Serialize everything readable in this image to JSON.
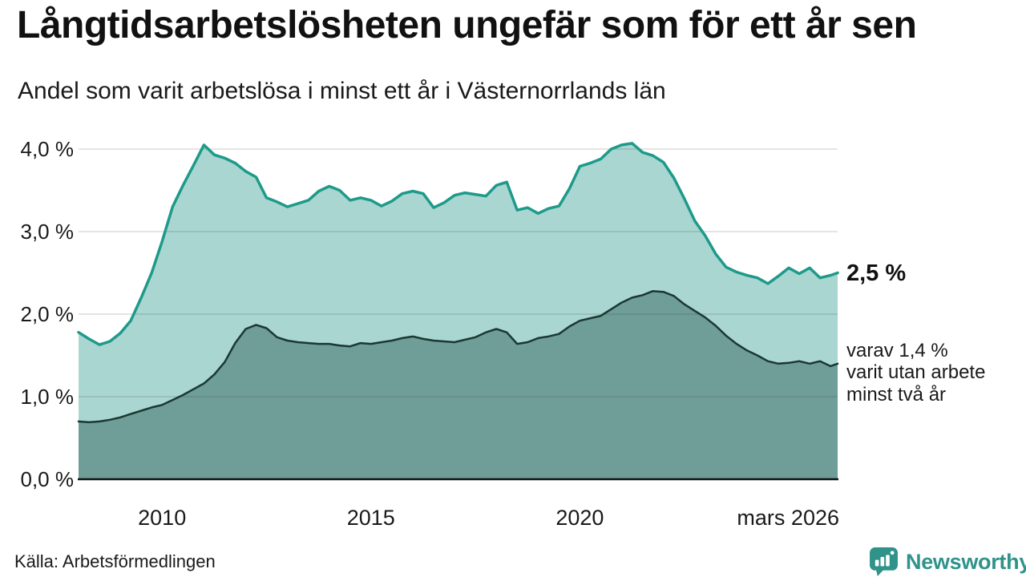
{
  "header": {
    "title": "Långtidsarbetslösheten ungefär som för ett år sen",
    "subtitle": "Andel som varit arbetslösa i minst ett år i Västernorrlands län"
  },
  "footer": {
    "source": "Källa: Arbetsförmedlingen",
    "brand": "Newsworthy"
  },
  "colors": {
    "brand_teal": "#2f938a",
    "series1_line": "#1e9a8a",
    "series1_fill": "#a9d6d0",
    "series2_line": "#1b3833",
    "series2_fill": "#6f9d98",
    "axis_line": "#101010",
    "gridline": "#d9d9d9",
    "text": "#1a1a1a"
  },
  "chart_data": {
    "type": "area",
    "title": "Långtidsarbetslösheten ungefär som för ett år sen",
    "subtitle": "Andel som varit arbetslösa i minst ett år i Västernorrlands län",
    "xlabel": "",
    "ylabel": "",
    "grid": "horizontal",
    "legend": "none (direct labels at line ends)",
    "ylim": [
      0,
      4.3
    ],
    "x_unit": "decimal year (monthly series, jan 2008 – mars 2026)",
    "x": [
      2008,
      2008.25,
      2008.5,
      2008.75,
      2009,
      2009.25,
      2009.5,
      2009.75,
      2010,
      2010.25,
      2010.5,
      2010.75,
      2011,
      2011.25,
      2011.5,
      2011.75,
      2012,
      2012.25,
      2012.5,
      2012.75,
      2013,
      2013.25,
      2013.5,
      2013.75,
      2014,
      2014.25,
      2014.5,
      2014.75,
      2015,
      2015.25,
      2015.5,
      2015.75,
      2016,
      2016.25,
      2016.5,
      2016.75,
      2017,
      2017.25,
      2017.5,
      2017.75,
      2018,
      2018.25,
      2018.5,
      2018.75,
      2019,
      2019.25,
      2019.5,
      2019.75,
      2020,
      2020.25,
      2020.5,
      2020.75,
      2021,
      2021.25,
      2021.5,
      2021.75,
      2022,
      2022.25,
      2022.5,
      2022.75,
      2023,
      2023.25,
      2023.5,
      2023.75,
      2024,
      2024.25,
      2024.5,
      2024.75,
      2025,
      2025.25,
      2025.5,
      2025.75,
      2026,
      2026.17
    ],
    "series": [
      {
        "name": "Andel som varit arbetslösa i minst ett år",
        "line_color": "#1e9a8a",
        "fill_color": "#a9d6d0",
        "end_value_pct": 2.5,
        "end_label": "2,5 %",
        "values": [
          1.78,
          1.7,
          1.63,
          1.67,
          1.77,
          1.92,
          2.2,
          2.5,
          2.88,
          3.3,
          3.56,
          3.8,
          4.05,
          3.93,
          3.89,
          3.83,
          3.73,
          3.66,
          3.41,
          3.36,
          3.3,
          3.34,
          3.38,
          3.49,
          3.55,
          3.5,
          3.38,
          3.41,
          3.38,
          3.31,
          3.37,
          3.46,
          3.49,
          3.46,
          3.29,
          3.35,
          3.44,
          3.47,
          3.45,
          3.43,
          3.56,
          3.6,
          3.26,
          3.29,
          3.22,
          3.28,
          3.31,
          3.52,
          3.79,
          3.83,
          3.88,
          4.0,
          4.05,
          4.07,
          3.96,
          3.92,
          3.84,
          3.65,
          3.4,
          3.13,
          2.95,
          2.73,
          2.57,
          2.51,
          2.47,
          2.44,
          2.37,
          2.46,
          2.56,
          2.49,
          2.56,
          2.44,
          2.47,
          2.5
        ]
      },
      {
        "name": "varav varit utan arbete minst två år",
        "line_color": "#1b3833",
        "fill_color": "#6f9d98",
        "end_value_pct": 1.4,
        "end_label": "varav 1,4 %\nvarit utan arbete\nminst två år",
        "values": [
          0.7,
          0.69,
          0.7,
          0.72,
          0.75,
          0.79,
          0.83,
          0.87,
          0.9,
          0.96,
          1.02,
          1.09,
          1.16,
          1.27,
          1.42,
          1.65,
          1.82,
          1.87,
          1.83,
          1.72,
          1.68,
          1.66,
          1.65,
          1.64,
          1.64,
          1.62,
          1.61,
          1.65,
          1.64,
          1.66,
          1.68,
          1.71,
          1.73,
          1.7,
          1.68,
          1.67,
          1.66,
          1.69,
          1.72,
          1.78,
          1.82,
          1.78,
          1.64,
          1.66,
          1.71,
          1.73,
          1.76,
          1.85,
          1.92,
          1.95,
          1.98,
          2.06,
          2.14,
          2.2,
          2.23,
          2.28,
          2.27,
          2.22,
          2.12,
          2.04,
          1.96,
          1.86,
          1.74,
          1.64,
          1.56,
          1.5,
          1.43,
          1.4,
          1.41,
          1.43,
          1.4,
          1.43,
          1.37,
          1.4
        ]
      }
    ],
    "yticks": [
      {
        "value": 0,
        "label": "0,0 %"
      },
      {
        "value": 1,
        "label": "1,0 %"
      },
      {
        "value": 2,
        "label": "2,0 %"
      },
      {
        "value": 3,
        "label": "3,0 %"
      },
      {
        "value": 4,
        "label": "4,0 %"
      }
    ],
    "xticks": [
      {
        "value": 2010,
        "label": "2010",
        "anchor": "middle"
      },
      {
        "value": 2015,
        "label": "2015",
        "anchor": "middle"
      },
      {
        "value": 2020,
        "label": "2020",
        "anchor": "middle"
      },
      {
        "value": 2026.17,
        "label": "mars 2026",
        "anchor": "end"
      }
    ]
  }
}
